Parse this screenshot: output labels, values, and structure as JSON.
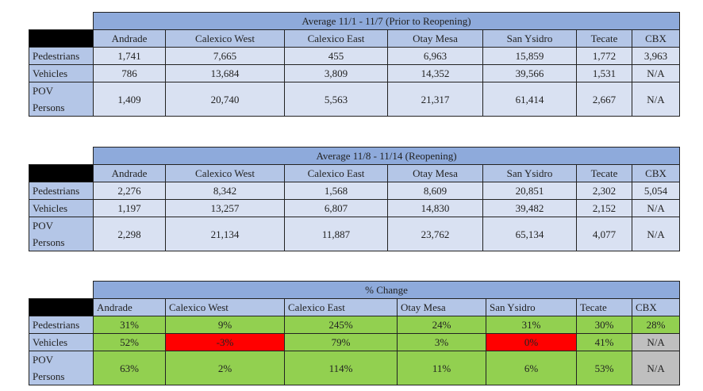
{
  "columns": [
    "Andrade",
    "Calexico West",
    "Calexico East",
    "Otay Mesa",
    "San Ysidro",
    "Tecate",
    "CBX"
  ],
  "row_labels": {
    "pedestrians": "Pedestrians",
    "vehicles": "Vehicles",
    "pov1": "POV",
    "pov2": "Persons"
  },
  "tables": [
    {
      "title": "Average 11/1 - 11/7 (Prior to Reopening)",
      "pedestrians": [
        "1,741",
        "7,665",
        "455",
        "6,963",
        "15,859",
        "1,772",
        "3,963"
      ],
      "vehicles": [
        "786",
        "13,684",
        "3,809",
        "14,352",
        "39,566",
        "1,531",
        "N/A"
      ],
      "pov": [
        "1,409",
        "20,740",
        "5,563",
        "21,317",
        "61,414",
        "2,667",
        "N/A"
      ]
    },
    {
      "title": "Average 11/8 - 11/14 (Reopening)",
      "pedestrians": [
        "2,276",
        "8,342",
        "1,568",
        "8,609",
        "20,851",
        "2,302",
        "5,054"
      ],
      "vehicles": [
        "1,197",
        "13,257",
        "6,807",
        "14,830",
        "39,482",
        "2,152",
        "N/A"
      ],
      "pov": [
        "2,298",
        "21,134",
        "11,887",
        "23,762",
        "65,134",
        "4,077",
        "N/A"
      ]
    },
    {
      "title": "% Change",
      "pedestrians": [
        "31%",
        "9%",
        "245%",
        "24%",
        "31%",
        "30%",
        "28%"
      ],
      "vehicles": [
        "52%",
        "-3%",
        "79%",
        "3%",
        "0%",
        "41%",
        "N/A"
      ],
      "pov": [
        "63%",
        "2%",
        "114%",
        "11%",
        "6%",
        "53%",
        "N/A"
      ]
    }
  ],
  "change_status": {
    "pedestrians": [
      "up",
      "up",
      "up",
      "up",
      "up",
      "up",
      "up"
    ],
    "vehicles": [
      "up",
      "down",
      "up",
      "up",
      "down",
      "up",
      "na"
    ],
    "pov": [
      "up",
      "up",
      "up",
      "up",
      "up",
      "up",
      "na"
    ]
  },
  "colors": {
    "title": "#8eaadb",
    "header": "#b4c6e7",
    "cell": "#d9e1f2",
    "up": "#92d050",
    "down": "#ff0000",
    "na": "#bfbfbf"
  }
}
